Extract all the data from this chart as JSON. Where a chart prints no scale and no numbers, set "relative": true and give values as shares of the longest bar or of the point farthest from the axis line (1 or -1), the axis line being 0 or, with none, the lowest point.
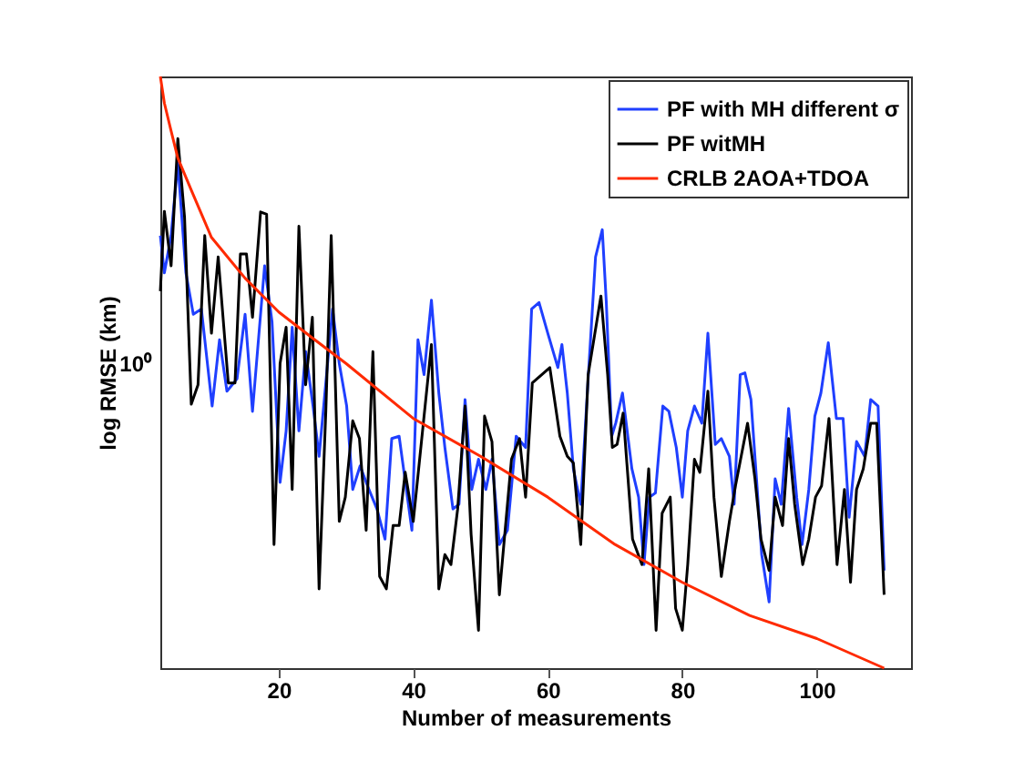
{
  "chart_data": {
    "type": "line",
    "xlabel": "Number of measurements",
    "ylabel": "log RMSE (km)",
    "grid": false,
    "legend": "top right",
    "line_style": "solid",
    "marker": "none",
    "relative": true,
    "annotations": [
      "10⁰"
    ],
    "xlim": [
      2.4,
      114
    ],
    "xticks": [
      20,
      40,
      60,
      80,
      100
    ],
    "series": [
      {
        "name": "PF with MH different σ",
        "color": "#1f3fff",
        "x": [
          2.4,
          3,
          4,
          5,
          6.2,
          7.3,
          8.5,
          10.1,
          11.2,
          12.3,
          13.8,
          15,
          16.1,
          17.9,
          19,
          20.2,
          21.1,
          22,
          23,
          24,
          25.1,
          26,
          27,
          28,
          29,
          30.1,
          31,
          32.1,
          33.2,
          34.6,
          35.8,
          36.8,
          37.9,
          38.9,
          39.8,
          40.7,
          41.6,
          42.7,
          43.8,
          44.7,
          45.9,
          46.8,
          47.7,
          48.7,
          49.7,
          50.8,
          51.7,
          52.8,
          54,
          55.3,
          56.7,
          57.6,
          58.7,
          60,
          61.5,
          62.1,
          62.9,
          63.8,
          64.9,
          66,
          67.1,
          68.1,
          68.7,
          69.5,
          70.1,
          71.1,
          72.5,
          73.5,
          74.3,
          75.1,
          76,
          77.1,
          78,
          79.1,
          80,
          80.8,
          81.8,
          82.9,
          83.8,
          84.9,
          85.8,
          87,
          87.7,
          88.6,
          89.3,
          90.2,
          91.1,
          91.8,
          92.9,
          93.8,
          94.7,
          95.8,
          97,
          97.8,
          98.8,
          99.7,
          100.6,
          101.7,
          102.9,
          103.9,
          104.8,
          105.9,
          107.1,
          108,
          109.1,
          110
        ],
        "values": [
          0.731,
          0.668,
          0.731,
          0.854,
          0.668,
          0.598,
          0.607,
          0.443,
          0.555,
          0.468,
          0.489,
          0.598,
          0.434,
          0.68,
          0.586,
          0.314,
          0.401,
          0.576,
          0.401,
          0.535,
          0.443,
          0.358,
          0.482,
          0.607,
          0.515,
          0.443,
          0.302,
          0.342,
          0.308,
          0.269,
          0.218,
          0.388,
          0.392,
          0.308,
          0.233,
          0.555,
          0.496,
          0.622,
          0.465,
          0.373,
          0.269,
          0.277,
          0.454,
          0.302,
          0.353,
          0.302,
          0.353,
          0.209,
          0.233,
          0.392,
          0.373,
          0.607,
          0.618,
          0.566,
          0.508,
          0.547,
          0.465,
          0.337,
          0.277,
          0.489,
          0.695,
          0.741,
          0.618,
          0.392,
          0.414,
          0.465,
          0.337,
          0.289,
          0.175,
          0.289,
          0.296,
          0.443,
          0.434,
          0.373,
          0.289,
          0.401,
          0.443,
          0.414,
          0.566,
          0.378,
          0.388,
          0.358,
          0.277,
          0.496,
          0.499,
          0.454,
          0.308,
          0.192,
          0.112,
          0.32,
          0.277,
          0.439,
          0.289,
          0.209,
          0.302,
          0.426,
          0.465,
          0.55,
          0.422,
          0.422,
          0.255,
          0.383,
          0.358,
          0.454,
          0.443,
          0.165
        ]
      },
      {
        "name": "PF witMH",
        "color": "#000000",
        "x": [
          2.4,
          3,
          4,
          5,
          6,
          7,
          8,
          9,
          10,
          11,
          12.5,
          13.5,
          14.3,
          15.2,
          16.1,
          17.3,
          18.2,
          19.3,
          20.2,
          21.1,
          22,
          23,
          24,
          25,
          26,
          27,
          27.8,
          29,
          29.9,
          31,
          32,
          33,
          34,
          35,
          36,
          37,
          37.9,
          38.8,
          40,
          42.7,
          43.8,
          44.7,
          45.6,
          46.6,
          47.7,
          48.6,
          49.7,
          50.6,
          51.7,
          52.8,
          54.6,
          55.8,
          56.7,
          57.7,
          60.3,
          61.8,
          62.9,
          63.8,
          64.9,
          66,
          67.9,
          68.9,
          69.6,
          70.3,
          71.2,
          72.6,
          74,
          75,
          76.1,
          77,
          78.2,
          79,
          80,
          80.8,
          81.8,
          82.6,
          83.8,
          84.7,
          85.8,
          87,
          87.9,
          89.7,
          90.8,
          91.7,
          92.9,
          93.8,
          94.9,
          95.8,
          96.7,
          97.9,
          98.8,
          99.8,
          100.7,
          101.8,
          103,
          104.1,
          105,
          105.9,
          106.9,
          108,
          108.9,
          110
        ],
        "values": [
          0.637,
          0.772,
          0.68,
          0.895,
          0.762,
          0.446,
          0.479,
          0.731,
          0.566,
          0.695,
          0.482,
          0.482,
          0.7,
          0.7,
          0.593,
          0.771,
          0.767,
          0.209,
          0.515,
          0.576,
          0.302,
          0.747,
          0.479,
          0.593,
          0.134,
          0.434,
          0.731,
          0.248,
          0.289,
          0.418,
          0.388,
          0.233,
          0.535,
          0.155,
          0.134,
          0.241,
          0.241,
          0.331,
          0.248,
          0.547,
          0.134,
          0.192,
          0.175,
          0.269,
          0.443,
          0.226,
          0.064,
          0.426,
          0.383,
          0.124,
          0.353,
          0.388,
          0.289,
          0.482,
          0.508,
          0.392,
          0.358,
          0.347,
          0.209,
          0.496,
          0.629,
          0.496,
          0.373,
          0.378,
          0.431,
          0.218,
          0.175,
          0.337,
          0.064,
          0.262,
          0.289,
          0.101,
          0.064,
          0.175,
          0.353,
          0.331,
          0.468,
          0.289,
          0.155,
          0.248,
          0.308,
          0.414,
          0.32,
          0.218,
          0.165,
          0.289,
          0.241,
          0.388,
          0.277,
          0.175,
          0.218,
          0.289,
          0.308,
          0.422,
          0.175,
          0.302,
          0.145,
          0.302,
          0.337,
          0.414,
          0.414,
          0.124
        ]
      },
      {
        "name": "CRLB 2AOA+TDOA",
        "color": "#ff2a00",
        "x": [
          2.4,
          3,
          4,
          5,
          7,
          10,
          15,
          20,
          25,
          30,
          40,
          50,
          60,
          70,
          80,
          90,
          100,
          110
        ],
        "values": [
          1,
          0.955,
          0.908,
          0.862,
          0.808,
          0.728,
          0.659,
          0.602,
          0.558,
          0.515,
          0.422,
          0.358,
          0.289,
          0.209,
          0.145,
          0.089,
          0.05,
          0
        ]
      }
    ]
  }
}
